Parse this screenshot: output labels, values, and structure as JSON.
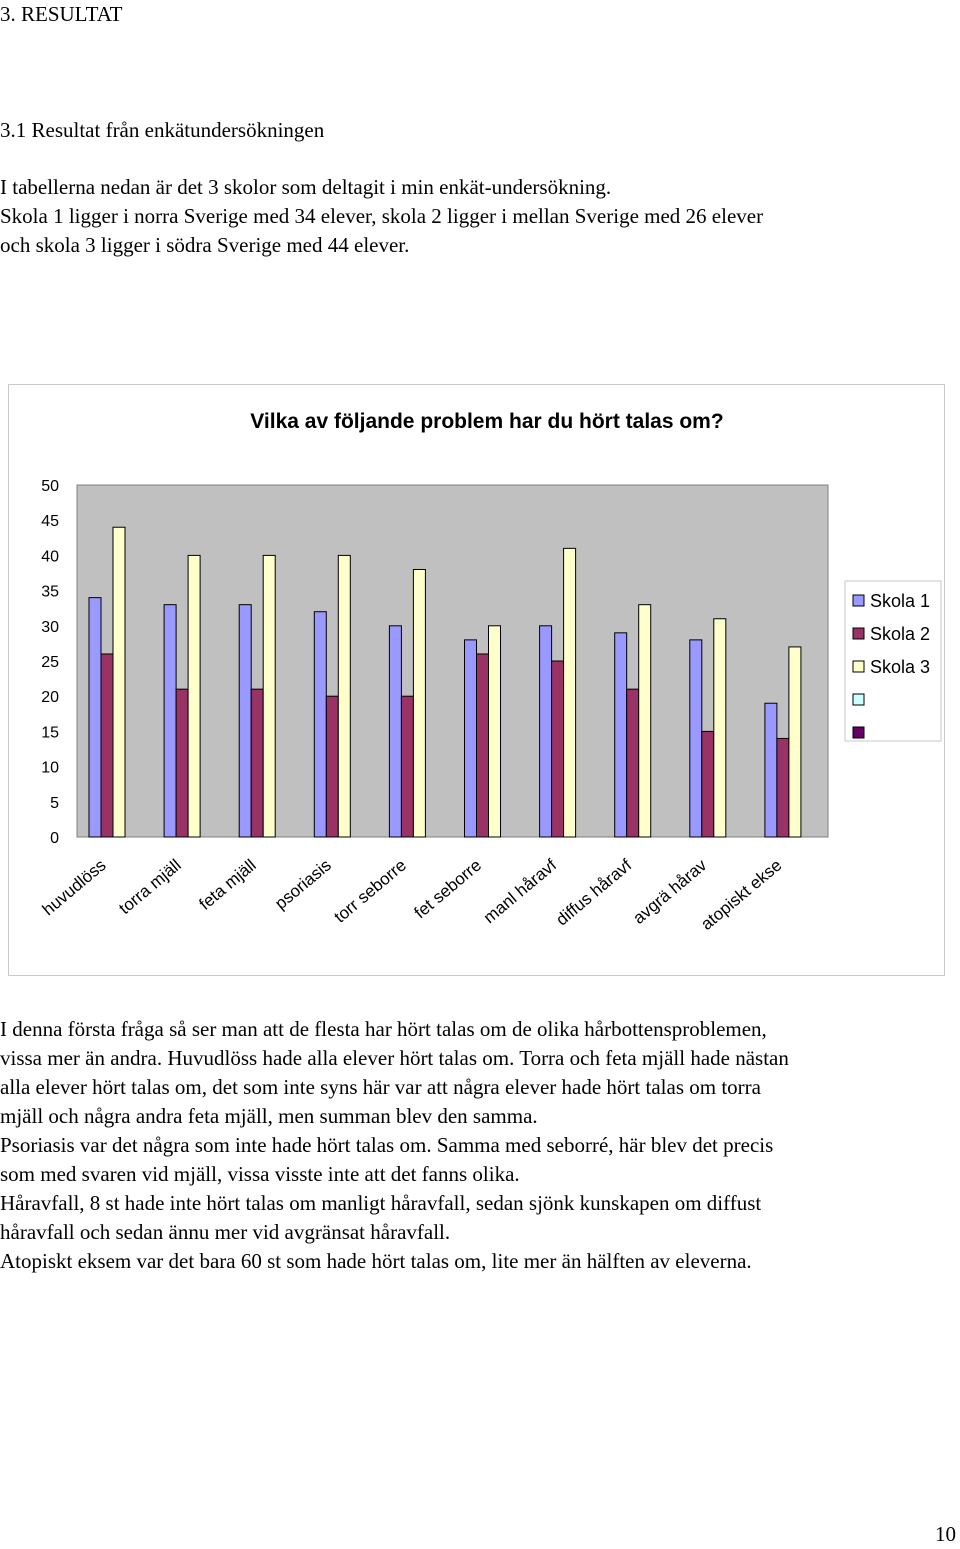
{
  "section": {
    "heading": "3.   RESULTAT"
  },
  "subsection": {
    "heading": "3.1  Resultat från enkätundersökningen"
  },
  "intro": {
    "lines": [
      "I tabellerna nedan är det 3 skolor som deltagit i min enkät-undersökning.",
      "Skola 1 ligger i norra Sverige med 34 elever, skola 2 ligger i mellan Sverige med 26 elever",
      "och skola 3 ligger i södra Sverige med 44 elever."
    ]
  },
  "chart_data": {
    "type": "bar",
    "title": "Vilka av följande problem har du hört talas om?",
    "xlabel": "",
    "ylabel": "",
    "ylim": [
      0,
      50
    ],
    "yticks": [
      "0",
      "5",
      "10",
      "15",
      "20",
      "25",
      "30",
      "35",
      "40",
      "45",
      "50"
    ],
    "categories": [
      "huvudlöss",
      "torra mjäll",
      "feta mjäll",
      "psoriasis",
      "torr seborre",
      "fet seborre",
      "manl håravf",
      "diffus håravf",
      "avgrä hårav",
      "atopiskt ekse"
    ],
    "series": [
      {
        "name": "Skola 1",
        "color": "#9999ff",
        "values": [
          34,
          33,
          33,
          32,
          30,
          28,
          30,
          29,
          28,
          19
        ]
      },
      {
        "name": "Skola 2",
        "color": "#993366",
        "values": [
          26,
          21,
          21,
          20,
          20,
          26,
          25,
          21,
          15,
          14
        ]
      },
      {
        "name": "Skola 3",
        "color": "#ffffcc",
        "values": [
          44,
          40,
          40,
          40,
          38,
          30,
          41,
          33,
          31,
          27
        ]
      }
    ],
    "legend_extra_swatches": [
      "#ccffff",
      "#660066"
    ],
    "plot_background": "#c0c0c0",
    "grid": false,
    "legend_position": "right"
  },
  "discussion": {
    "lines": [
      "I denna första fråga så ser man att de flesta har hört talas om de olika hårbottensproblemen,",
      "vissa mer än andra. Huvudlöss hade alla elever hört talas om. Torra och feta mjäll hade nästan",
      "alla elever hört talas om, det som inte syns här var att några elever hade hört talas om torra",
      "mjäll och några andra feta mjäll, men summan blev den samma.",
      "Psoriasis var det några som inte hade hört talas om. Samma med seborré, här blev det precis",
      "som med svaren vid mjäll, vissa visste inte att det fanns olika.",
      "Håravfall, 8 st hade inte hört talas om manligt håravfall, sedan sjönk kunskapen om diffust",
      "håravfall och sedan ännu mer vid avgränsat håravfall.",
      "Atopiskt eksem var det bara 60 st som hade hört talas om, lite mer än hälften av eleverna."
    ]
  },
  "footer": {
    "page_number": "10"
  }
}
